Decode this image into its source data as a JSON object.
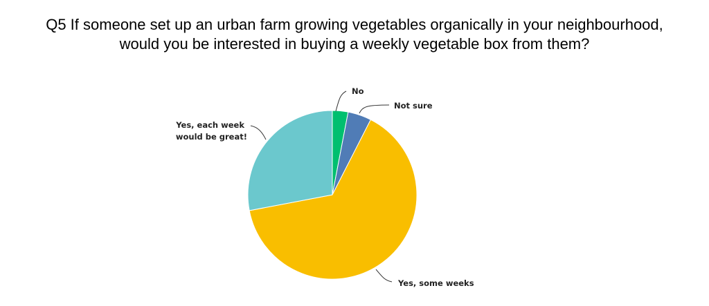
{
  "title_lines": [
    "Q5 If someone set up an urban farm growing vegetables organically in your neighbourhood,",
    "would you be interested in buying a weekly vegetable box from them?"
  ],
  "chart_data": {
    "type": "pie",
    "title": "Q5 If someone set up an urban farm growing vegetables organically in your neighbourhood, would you be interested in buying a weekly vegetable box from them?",
    "categories": [
      "No",
      "Not sure",
      "Yes, some weeks",
      "Yes, each week would be great!"
    ],
    "values": [
      3,
      4.5,
      64.5,
      28
    ],
    "colors": [
      "#00bf6f",
      "#507cb6",
      "#f9be00",
      "#6bc8cd"
    ],
    "legend": "none",
    "labels_on_slices": true
  }
}
